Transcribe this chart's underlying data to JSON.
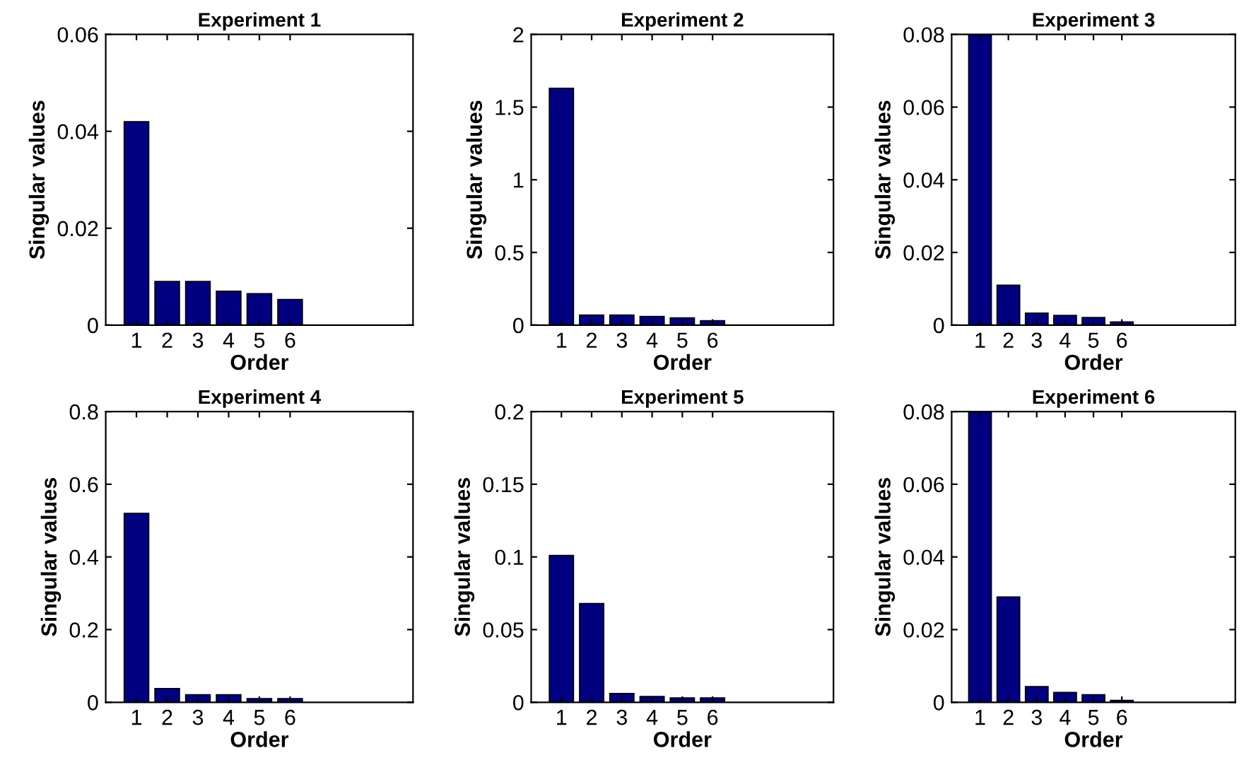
{
  "chart_data": [
    {
      "type": "bar",
      "title": "Experiment 1",
      "xlabel": "Order",
      "ylabel": "Singular values",
      "x": [
        1,
        2,
        3,
        4,
        5,
        6
      ],
      "values": [
        0.042,
        0.009,
        0.009,
        0.007,
        0.0065,
        0.0053
      ],
      "color": "#000080",
      "xlim": [
        0,
        10
      ],
      "xticks": [
        1,
        2,
        3,
        4,
        5,
        6
      ],
      "ylim": [
        0,
        0.06
      ],
      "yticks": [
        0,
        0.02,
        0.04,
        0.06
      ]
    },
    {
      "type": "bar",
      "title": "Experiment 2",
      "xlabel": "Order",
      "ylabel": "Singular values",
      "x": [
        1,
        2,
        3,
        4,
        5,
        6
      ],
      "values": [
        1.63,
        0.07,
        0.07,
        0.06,
        0.05,
        0.03
      ],
      "color": "#000080",
      "xlim": [
        0,
        10
      ],
      "xticks": [
        1,
        2,
        3,
        4,
        5,
        6
      ],
      "ylim": [
        0,
        2
      ],
      "yticks": [
        0,
        0.5,
        1,
        1.5,
        2
      ]
    },
    {
      "type": "bar",
      "title": "Experiment 3",
      "xlabel": "Order",
      "ylabel": "Singular values",
      "x": [
        1,
        2,
        3,
        4,
        5,
        6
      ],
      "values": [
        0.08,
        0.011,
        0.0033,
        0.0027,
        0.0021,
        0.0009
      ],
      "color": "#000080",
      "xlim": [
        0,
        10
      ],
      "xticks": [
        1,
        2,
        3,
        4,
        5,
        6
      ],
      "ylim": [
        0,
        0.08
      ],
      "yticks": [
        0,
        0.02,
        0.04,
        0.06,
        0.08
      ]
    },
    {
      "type": "bar",
      "title": "Experiment 4",
      "xlabel": "Order",
      "ylabel": "Singular values",
      "x": [
        1,
        2,
        3,
        4,
        5,
        6
      ],
      "values": [
        0.52,
        0.038,
        0.021,
        0.021,
        0.01,
        0.01
      ],
      "color": "#000080",
      "xlim": [
        0,
        10
      ],
      "xticks": [
        1,
        2,
        3,
        4,
        5,
        6
      ],
      "ylim": [
        0,
        0.8
      ],
      "yticks": [
        0,
        0.2,
        0.4,
        0.6,
        0.8
      ]
    },
    {
      "type": "bar",
      "title": "Experiment 5",
      "xlabel": "Order",
      "ylabel": "Singular values",
      "x": [
        1,
        2,
        3,
        4,
        5,
        6
      ],
      "values": [
        0.101,
        0.068,
        0.006,
        0.004,
        0.003,
        0.003
      ],
      "color": "#000080",
      "xlim": [
        0,
        10
      ],
      "xticks": [
        1,
        2,
        3,
        4,
        5,
        6
      ],
      "ylim": [
        0,
        0.2
      ],
      "yticks": [
        0,
        0.05,
        0.1,
        0.15,
        0.2
      ]
    },
    {
      "type": "bar",
      "title": "Experiment 6",
      "xlabel": "Order",
      "ylabel": "Singular values",
      "x": [
        1,
        2,
        3,
        4,
        5,
        6
      ],
      "values": [
        0.08,
        0.029,
        0.0043,
        0.0027,
        0.0021,
        0.0005
      ],
      "color": "#000080",
      "xlim": [
        0,
        10
      ],
      "xticks": [
        1,
        2,
        3,
        4,
        5,
        6
      ],
      "ylim": [
        0,
        0.08
      ],
      "yticks": [
        0,
        0.02,
        0.04,
        0.06,
        0.08
      ]
    }
  ]
}
